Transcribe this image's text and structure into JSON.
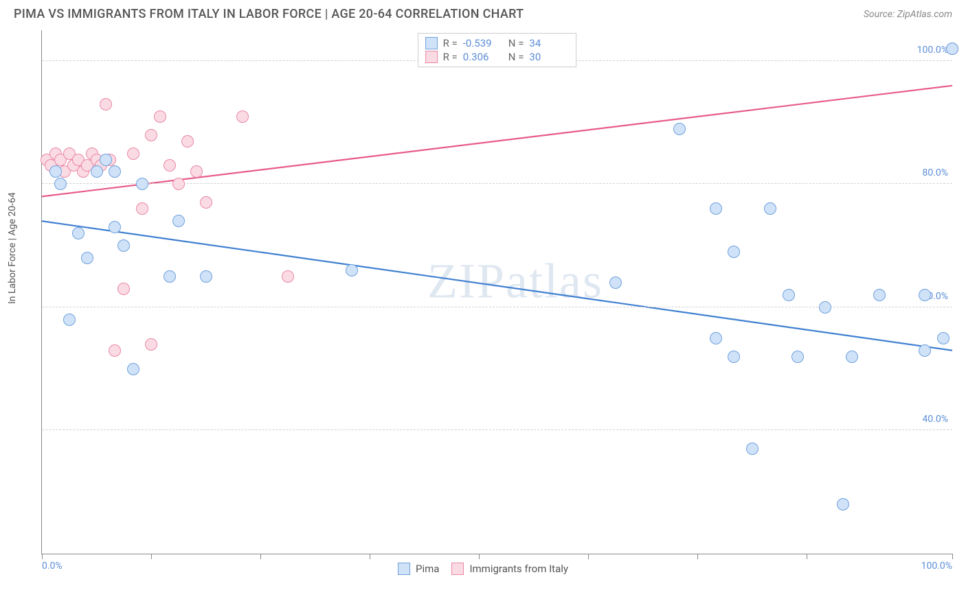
{
  "title": "PIMA VS IMMIGRANTS FROM ITALY IN LABOR FORCE | AGE 20-64 CORRELATION CHART",
  "source": "Source: ZipAtlas.com",
  "ylabel": "In Labor Force | Age 20-64",
  "watermark": "ZIPatlas",
  "chart": {
    "type": "scatter",
    "xlim": [
      0,
      100
    ],
    "ylim": [
      20,
      105
    ],
    "xtick_positions": [
      0,
      12,
      24,
      36,
      48,
      60,
      72,
      84,
      100
    ],
    "xtick_labels": {
      "0": "0.0%",
      "100": "100.0%"
    },
    "ytick_labels": [
      {
        "v": 40,
        "t": "40.0%"
      },
      {
        "v": 60,
        "t": "60.0%"
      },
      {
        "v": 80,
        "t": "80.0%"
      },
      {
        "v": 100,
        "t": "100.0%"
      }
    ],
    "axis_label_color": "#5b8dd6",
    "grid_color": "#d0d0d0",
    "series": [
      {
        "name": "Pima",
        "fill": "#cfe2f8",
        "stroke": "#6fa0dd",
        "line_color": "#3f7fd1",
        "R": "-0.539",
        "N": "34",
        "trend": {
          "x1": 0,
          "y1": 74,
          "x2": 100,
          "y2": 53
        },
        "points": [
          [
            1.5,
            82
          ],
          [
            2,
            80
          ],
          [
            3,
            58
          ],
          [
            4,
            72
          ],
          [
            5,
            68
          ],
          [
            6,
            82
          ],
          [
            7,
            84
          ],
          [
            8,
            73
          ],
          [
            8,
            82
          ],
          [
            9,
            70
          ],
          [
            10,
            50
          ],
          [
            11,
            80
          ],
          [
            14,
            65
          ],
          [
            15,
            74
          ],
          [
            18,
            65
          ],
          [
            34,
            66
          ],
          [
            63,
            64
          ],
          [
            70,
            89
          ],
          [
            74,
            76
          ],
          [
            74,
            55
          ],
          [
            76,
            69
          ],
          [
            76,
            52
          ],
          [
            78,
            37
          ],
          [
            80,
            76
          ],
          [
            82,
            62
          ],
          [
            83,
            52
          ],
          [
            86,
            60
          ],
          [
            88,
            28
          ],
          [
            89,
            52
          ],
          [
            92,
            62
          ],
          [
            97,
            53
          ],
          [
            97,
            62
          ],
          [
            99,
            55
          ],
          [
            100,
            102
          ]
        ]
      },
      {
        "name": "Immigrants from Italy",
        "fill": "#fadbe4",
        "stroke": "#e986a5",
        "line_color": "#e75a88",
        "R": "0.306",
        "N": "30",
        "trend": {
          "x1": 0,
          "y1": 78,
          "x2": 100,
          "y2": 96
        },
        "points": [
          [
            0.5,
            84
          ],
          [
            1,
            83
          ],
          [
            1.5,
            85
          ],
          [
            2,
            84
          ],
          [
            2.5,
            82
          ],
          [
            3,
            85
          ],
          [
            3.5,
            83
          ],
          [
            4,
            84
          ],
          [
            4.5,
            82
          ],
          [
            5,
            83
          ],
          [
            5.5,
            85
          ],
          [
            6,
            84
          ],
          [
            6.5,
            83
          ],
          [
            7,
            93
          ],
          [
            7.5,
            84
          ],
          [
            8,
            53
          ],
          [
            9,
            63
          ],
          [
            10,
            85
          ],
          [
            11,
            76
          ],
          [
            12,
            54
          ],
          [
            12,
            88
          ],
          [
            13,
            91
          ],
          [
            14,
            83
          ],
          [
            15,
            80
          ],
          [
            16,
            87
          ],
          [
            17,
            82
          ],
          [
            18,
            77
          ],
          [
            22,
            91
          ],
          [
            27,
            65
          ],
          [
            100,
            102
          ]
        ]
      }
    ]
  },
  "legend_bottom": [
    {
      "label": "Pima",
      "series": 0
    },
    {
      "label": "Immigrants from Italy",
      "series": 1
    }
  ]
}
